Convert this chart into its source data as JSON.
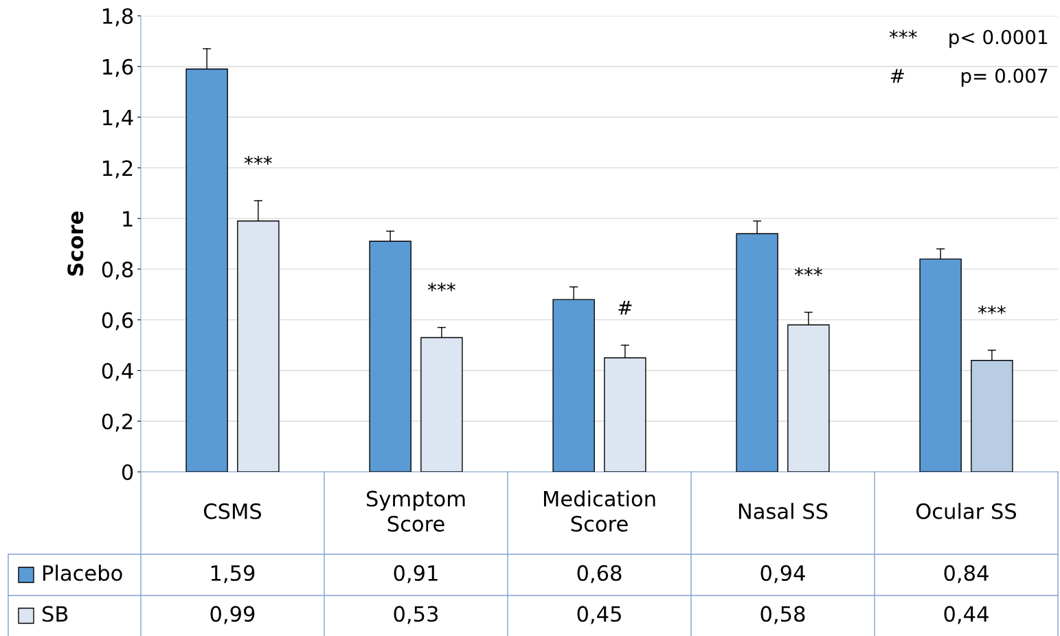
{
  "chart_data": {
    "type": "bar",
    "ylabel": "Score",
    "categories": [
      "CSMS",
      "Symptom Score",
      "Medication Score",
      "Nasal SS",
      "Ocular SS"
    ],
    "series": [
      {
        "name": "Placebo",
        "color": "#5b9bd5",
        "values": [
          1.59,
          0.91,
          0.68,
          0.94,
          0.84
        ],
        "value_labels": [
          "1,59",
          "0,91",
          "0,68",
          "0,94",
          "0,84"
        ],
        "errors": [
          [
            1.59,
            1.67
          ],
          [
            0.91,
            0.95
          ],
          [
            0.68,
            0.73
          ],
          [
            0.94,
            0.99
          ],
          [
            0.84,
            0.88
          ]
        ]
      },
      {
        "name": "SB",
        "color": "#dce6f2",
        "colors": [
          "#dce6f2",
          "#dce6f2",
          "#dce6f2",
          "#dce6f2",
          "#b8cce4"
        ],
        "values": [
          0.99,
          0.53,
          0.45,
          0.58,
          0.44
        ],
        "value_labels": [
          "0,99",
          "0,53",
          "0,45",
          "0,58",
          "0,44"
        ],
        "errors": [
          [
            0.99,
            1.07
          ],
          [
            0.53,
            0.57
          ],
          [
            0.45,
            0.5
          ],
          [
            0.58,
            0.63
          ],
          [
            0.44,
            0.48
          ]
        ]
      }
    ],
    "ylim": [
      0,
      1.8
    ],
    "yticks": [
      0,
      {
        "value": 0.2,
        "label": "0,2"
      },
      {
        "value": 0.4,
        "label": "0,4"
      },
      {
        "value": 0.6,
        "label": "0,6"
      },
      {
        "value": 0.8,
        "label": "0,8"
      },
      1,
      {
        "value": 1.2,
        "label": "1,2"
      },
      {
        "value": 1.4,
        "label": "1,4"
      },
      {
        "value": 1.6,
        "label": "1,6"
      },
      {
        "value": 1.8,
        "label": "1,8"
      }
    ],
    "grid": "y",
    "legend": "bottom",
    "data_labels": true,
    "annotations": [
      "***",
      "***",
      "#",
      "***",
      "***",
      "***     p< 0.0001",
      "#         p= 0.007"
    ]
  }
}
